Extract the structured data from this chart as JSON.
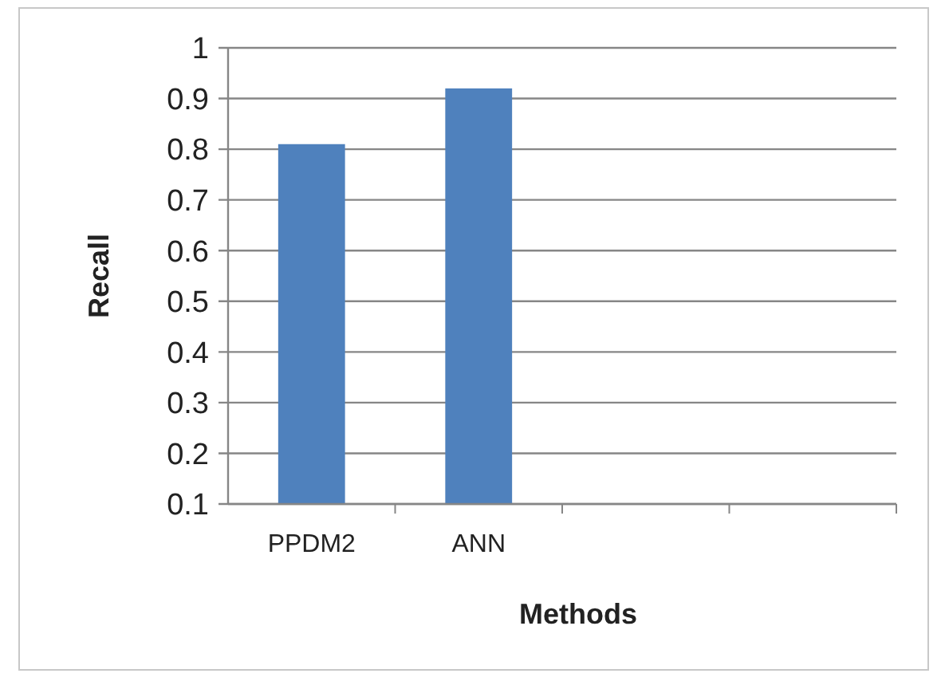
{
  "chart_data": {
    "type": "bar",
    "xlabel": "Methods",
    "ylabel": "Recall",
    "categories": [
      "PPDM2",
      "ANN",
      null,
      null
    ],
    "values": [
      0.81,
      0.92,
      null,
      null
    ],
    "color": "#4f81bd",
    "ylim": [
      0.1,
      1
    ],
    "yticks": [
      0.1,
      0.2,
      0.3,
      0.4,
      0.5,
      0.6,
      0.7,
      0.8,
      0.9,
      1
    ],
    "grid": "y"
  }
}
